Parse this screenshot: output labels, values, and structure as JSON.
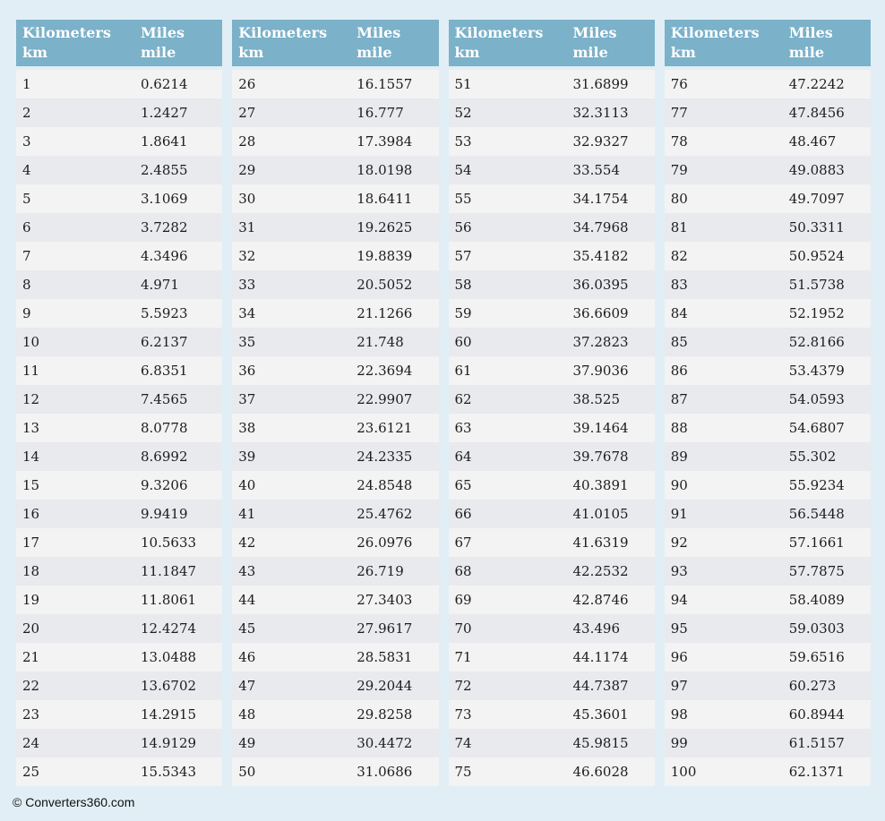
{
  "page": {
    "background_color": "#e1eef5"
  },
  "colors": {
    "header_bg": "#7bb1c9",
    "header_text": "#ffffff",
    "row_odd": "#f3f3f3",
    "row_even": "#e8eaee",
    "cell_text": "#1c1c1c"
  },
  "header": {
    "kilometers_label": "Kilometers",
    "kilometers_unit": "km",
    "miles_label": "Miles",
    "miles_unit": "mile"
  },
  "footer": {
    "copyright": "© Converters360.com"
  },
  "chart_data": {
    "type": "table",
    "title": "Kilometers to Miles conversion table",
    "columns": [
      "Kilometers km",
      "Miles mile"
    ],
    "layout": "4 side-by-side table columns of 25 rows each, alternating row stripes",
    "groups": [
      {
        "rows": [
          [
            "1",
            "0.6214"
          ],
          [
            "2",
            "1.2427"
          ],
          [
            "3",
            "1.8641"
          ],
          [
            "4",
            "2.4855"
          ],
          [
            "5",
            "3.1069"
          ],
          [
            "6",
            "3.7282"
          ],
          [
            "7",
            "4.3496"
          ],
          [
            "8",
            "4.971"
          ],
          [
            "9",
            "5.5923"
          ],
          [
            "10",
            "6.2137"
          ],
          [
            "11",
            "6.8351"
          ],
          [
            "12",
            "7.4565"
          ],
          [
            "13",
            "8.0778"
          ],
          [
            "14",
            "8.6992"
          ],
          [
            "15",
            "9.3206"
          ],
          [
            "16",
            "9.9419"
          ],
          [
            "17",
            "10.5633"
          ],
          [
            "18",
            "11.1847"
          ],
          [
            "19",
            "11.8061"
          ],
          [
            "20",
            "12.4274"
          ],
          [
            "21",
            "13.0488"
          ],
          [
            "22",
            "13.6702"
          ],
          [
            "23",
            "14.2915"
          ],
          [
            "24",
            "14.9129"
          ],
          [
            "25",
            "15.5343"
          ]
        ]
      },
      {
        "rows": [
          [
            "26",
            "16.1557"
          ],
          [
            "27",
            "16.777"
          ],
          [
            "28",
            "17.3984"
          ],
          [
            "29",
            "18.0198"
          ],
          [
            "30",
            "18.6411"
          ],
          [
            "31",
            "19.2625"
          ],
          [
            "32",
            "19.8839"
          ],
          [
            "33",
            "20.5052"
          ],
          [
            "34",
            "21.1266"
          ],
          [
            "35",
            "21.748"
          ],
          [
            "36",
            "22.3694"
          ],
          [
            "37",
            "22.9907"
          ],
          [
            "38",
            "23.6121"
          ],
          [
            "39",
            "24.2335"
          ],
          [
            "40",
            "24.8548"
          ],
          [
            "41",
            "25.4762"
          ],
          [
            "42",
            "26.0976"
          ],
          [
            "43",
            "26.719"
          ],
          [
            "44",
            "27.3403"
          ],
          [
            "45",
            "27.9617"
          ],
          [
            "46",
            "28.5831"
          ],
          [
            "47",
            "29.2044"
          ],
          [
            "48",
            "29.8258"
          ],
          [
            "49",
            "30.4472"
          ],
          [
            "50",
            "31.0686"
          ]
        ]
      },
      {
        "rows": [
          [
            "51",
            "31.6899"
          ],
          [
            "52",
            "32.3113"
          ],
          [
            "53",
            "32.9327"
          ],
          [
            "54",
            "33.554"
          ],
          [
            "55",
            "34.1754"
          ],
          [
            "56",
            "34.7968"
          ],
          [
            "57",
            "35.4182"
          ],
          [
            "58",
            "36.0395"
          ],
          [
            "59",
            "36.6609"
          ],
          [
            "60",
            "37.2823"
          ],
          [
            "61",
            "37.9036"
          ],
          [
            "62",
            "38.525"
          ],
          [
            "63",
            "39.1464"
          ],
          [
            "64",
            "39.7678"
          ],
          [
            "65",
            "40.3891"
          ],
          [
            "66",
            "41.0105"
          ],
          [
            "67",
            "41.6319"
          ],
          [
            "68",
            "42.2532"
          ],
          [
            "69",
            "42.8746"
          ],
          [
            "70",
            "43.496"
          ],
          [
            "71",
            "44.1174"
          ],
          [
            "72",
            "44.7387"
          ],
          [
            "73",
            "45.3601"
          ],
          [
            "74",
            "45.9815"
          ],
          [
            "75",
            "46.6028"
          ]
        ]
      },
      {
        "rows": [
          [
            "76",
            "47.2242"
          ],
          [
            "77",
            "47.8456"
          ],
          [
            "78",
            "48.467"
          ],
          [
            "79",
            "49.0883"
          ],
          [
            "80",
            "49.7097"
          ],
          [
            "81",
            "50.3311"
          ],
          [
            "82",
            "50.9524"
          ],
          [
            "83",
            "51.5738"
          ],
          [
            "84",
            "52.1952"
          ],
          [
            "85",
            "52.8166"
          ],
          [
            "86",
            "53.4379"
          ],
          [
            "87",
            "54.0593"
          ],
          [
            "88",
            "54.6807"
          ],
          [
            "89",
            "55.302"
          ],
          [
            "90",
            "55.9234"
          ],
          [
            "91",
            "56.5448"
          ],
          [
            "92",
            "57.1661"
          ],
          [
            "93",
            "57.7875"
          ],
          [
            "94",
            "58.4089"
          ],
          [
            "95",
            "59.0303"
          ],
          [
            "96",
            "59.6516"
          ],
          [
            "97",
            "60.273"
          ],
          [
            "98",
            "60.8944"
          ],
          [
            "99",
            "61.5157"
          ],
          [
            "100",
            "62.1371"
          ]
        ]
      }
    ]
  }
}
